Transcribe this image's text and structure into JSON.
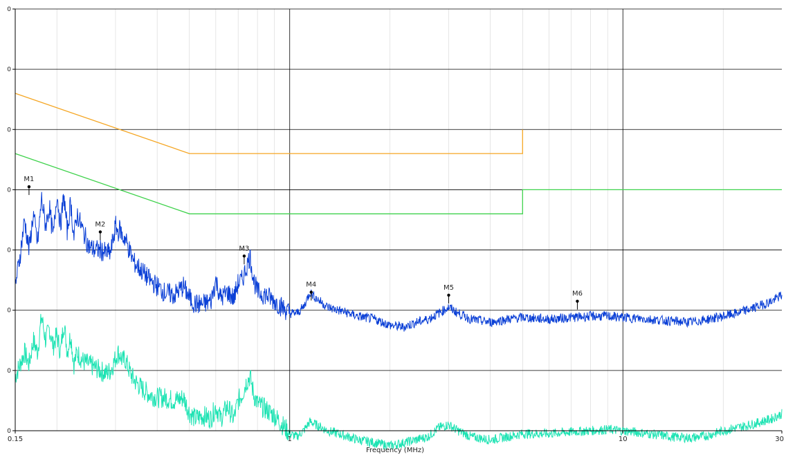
{
  "chart_data": {
    "type": "line",
    "title": "",
    "xlabel": "Frequency (MHz)",
    "ylabel": "",
    "x_scale": "log",
    "xlim": [
      0.15,
      30
    ],
    "x_ticks": [
      {
        "value": 0.15,
        "label": "0.15"
      },
      {
        "value": 1,
        "label": "1"
      },
      {
        "value": 10,
        "label": "10"
      },
      {
        "value": 30,
        "label": "30"
      }
    ],
    "ylim": [
      0,
      7
    ],
    "y_ticks": [
      {
        "value": 0,
        "label": "0"
      },
      {
        "value": 1,
        "label": "0"
      },
      {
        "value": 2,
        "label": "0"
      },
      {
        "value": 3,
        "label": "0"
      },
      {
        "value": 4,
        "label": "0"
      },
      {
        "value": 5,
        "label": "0"
      },
      {
        "value": 6,
        "label": "0"
      },
      {
        "value": 7,
        "label": "0"
      }
    ],
    "grid": true,
    "colors": {
      "peak_trace": "#0a3fd6",
      "average_trace": "#1de3b3",
      "qp_limit": "#f5a623",
      "avg_limit": "#3fd24c",
      "grid": "#000000",
      "minor_grid": "#cccccc"
    },
    "limit_lines": [
      {
        "key": "qp",
        "points": [
          [
            0.15,
            5.6
          ],
          [
            0.5,
            4.6
          ],
          [
            5,
            4.6
          ],
          [
            5,
            5.0
          ]
        ]
      },
      {
        "key": "avg",
        "points": [
          [
            0.15,
            4.6
          ],
          [
            0.5,
            3.6
          ],
          [
            5,
            3.6
          ],
          [
            5,
            4.0
          ],
          [
            30,
            4.0
          ]
        ]
      }
    ],
    "peak_trace": [
      [
        0.15,
        2.4
      ],
      [
        0.155,
        2.9
      ],
      [
        0.16,
        3.5
      ],
      [
        0.165,
        3.0
      ],
      [
        0.17,
        3.6
      ],
      [
        0.175,
        3.1
      ],
      [
        0.18,
        3.85
      ],
      [
        0.185,
        3.4
      ],
      [
        0.19,
        3.7
      ],
      [
        0.195,
        3.2
      ],
      [
        0.2,
        3.95
      ],
      [
        0.205,
        3.4
      ],
      [
        0.21,
        3.9
      ],
      [
        0.215,
        3.3
      ],
      [
        0.22,
        3.8
      ],
      [
        0.225,
        3.2
      ],
      [
        0.23,
        3.6
      ],
      [
        0.24,
        3.3
      ],
      [
        0.25,
        3.05
      ],
      [
        0.26,
        3.0
      ],
      [
        0.27,
        3.0
      ],
      [
        0.28,
        2.95
      ],
      [
        0.29,
        2.95
      ],
      [
        0.3,
        3.4
      ],
      [
        0.305,
        3.3
      ],
      [
        0.31,
        3.35
      ],
      [
        0.315,
        3.2
      ],
      [
        0.32,
        3.2
      ],
      [
        0.33,
        3.0
      ],
      [
        0.34,
        2.8
      ],
      [
        0.36,
        2.65
      ],
      [
        0.38,
        2.5
      ],
      [
        0.4,
        2.4
      ],
      [
        0.42,
        2.3
      ],
      [
        0.45,
        2.25
      ],
      [
        0.48,
        2.4
      ],
      [
        0.5,
        2.2
      ],
      [
        0.52,
        2.1
      ],
      [
        0.55,
        2.1
      ],
      [
        0.58,
        2.15
      ],
      [
        0.6,
        2.5
      ],
      [
        0.62,
        2.2
      ],
      [
        0.65,
        2.3
      ],
      [
        0.68,
        2.2
      ],
      [
        0.7,
        2.45
      ],
      [
        0.72,
        2.5
      ],
      [
        0.74,
        2.7
      ],
      [
        0.76,
        2.9
      ],
      [
        0.78,
        2.5
      ],
      [
        0.8,
        2.3
      ],
      [
        0.85,
        2.25
      ],
      [
        0.9,
        2.15
      ],
      [
        0.95,
        2.05
      ],
      [
        1.0,
        1.95
      ],
      [
        1.05,
        1.95
      ],
      [
        1.1,
        2.05
      ],
      [
        1.15,
        2.3
      ],
      [
        1.2,
        2.2
      ],
      [
        1.3,
        2.05
      ],
      [
        1.4,
        2.0
      ],
      [
        1.5,
        1.95
      ],
      [
        1.6,
        1.9
      ],
      [
        1.8,
        1.85
      ],
      [
        2.0,
        1.75
      ],
      [
        2.2,
        1.72
      ],
      [
        2.4,
        1.8
      ],
      [
        2.6,
        1.85
      ],
      [
        2.8,
        1.95
      ],
      [
        3.0,
        2.05
      ],
      [
        3.2,
        1.95
      ],
      [
        3.5,
        1.85
      ],
      [
        4.0,
        1.8
      ],
      [
        4.5,
        1.85
      ],
      [
        5.0,
        1.88
      ],
      [
        6.0,
        1.85
      ],
      [
        7.0,
        1.88
      ],
      [
        8.0,
        1.9
      ],
      [
        9.0,
        1.9
      ],
      [
        10.0,
        1.88
      ],
      [
        12.0,
        1.85
      ],
      [
        14.0,
        1.82
      ],
      [
        16.0,
        1.8
      ],
      [
        18.0,
        1.85
      ],
      [
        20.0,
        1.9
      ],
      [
        22.0,
        1.95
      ],
      [
        25.0,
        2.05
      ],
      [
        28.0,
        2.15
      ],
      [
        30.0,
        2.25
      ]
    ],
    "average_trace": [
      [
        0.15,
        0.9
      ],
      [
        0.155,
        1.1
      ],
      [
        0.16,
        1.3
      ],
      [
        0.165,
        1.1
      ],
      [
        0.17,
        1.5
      ],
      [
        0.175,
        1.3
      ],
      [
        0.18,
        1.9
      ],
      [
        0.185,
        1.5
      ],
      [
        0.19,
        1.7
      ],
      [
        0.195,
        1.4
      ],
      [
        0.2,
        1.6
      ],
      [
        0.205,
        1.3
      ],
      [
        0.21,
        1.8
      ],
      [
        0.215,
        1.3
      ],
      [
        0.22,
        1.6
      ],
      [
        0.225,
        1.1
      ],
      [
        0.23,
        1.3
      ],
      [
        0.24,
        1.15
      ],
      [
        0.25,
        1.1
      ],
      [
        0.26,
        1.05
      ],
      [
        0.27,
        1.0
      ],
      [
        0.28,
        0.95
      ],
      [
        0.29,
        1.0
      ],
      [
        0.3,
        1.2
      ],
      [
        0.305,
        1.3
      ],
      [
        0.31,
        1.25
      ],
      [
        0.315,
        1.15
      ],
      [
        0.32,
        1.2
      ],
      [
        0.33,
        1.0
      ],
      [
        0.34,
        0.85
      ],
      [
        0.36,
        0.7
      ],
      [
        0.38,
        0.6
      ],
      [
        0.4,
        0.55
      ],
      [
        0.42,
        0.55
      ],
      [
        0.45,
        0.5
      ],
      [
        0.48,
        0.55
      ],
      [
        0.5,
        0.3
      ],
      [
        0.52,
        0.2
      ],
      [
        0.55,
        0.25
      ],
      [
        0.58,
        0.2
      ],
      [
        0.6,
        0.4
      ],
      [
        0.62,
        0.2
      ],
      [
        0.65,
        0.4
      ],
      [
        0.68,
        0.2
      ],
      [
        0.7,
        0.5
      ],
      [
        0.72,
        0.6
      ],
      [
        0.74,
        0.8
      ],
      [
        0.76,
        0.9
      ],
      [
        0.78,
        0.6
      ],
      [
        0.8,
        0.45
      ],
      [
        0.85,
        0.35
      ],
      [
        0.9,
        0.25
      ],
      [
        0.95,
        0.1
      ],
      [
        1.0,
        -0.05
      ],
      [
        1.05,
        -0.1
      ],
      [
        1.1,
        0.0
      ],
      [
        1.15,
        0.15
      ],
      [
        1.2,
        0.1
      ],
      [
        1.3,
        0.0
      ],
      [
        1.4,
        -0.05
      ],
      [
        1.5,
        -0.1
      ],
      [
        1.6,
        -0.15
      ],
      [
        1.8,
        -0.2
      ],
      [
        2.0,
        -0.25
      ],
      [
        2.2,
        -0.2
      ],
      [
        2.4,
        -0.15
      ],
      [
        2.6,
        -0.1
      ],
      [
        2.8,
        0.05
      ],
      [
        3.0,
        0.1
      ],
      [
        3.2,
        0.0
      ],
      [
        3.5,
        -0.1
      ],
      [
        4.0,
        -0.15
      ],
      [
        4.5,
        -0.1
      ],
      [
        5.0,
        -0.05
      ],
      [
        6.0,
        -0.05
      ],
      [
        7.0,
        -0.02
      ],
      [
        8.0,
        0.0
      ],
      [
        9.0,
        0.02
      ],
      [
        10.0,
        0.0
      ],
      [
        12.0,
        -0.05
      ],
      [
        14.0,
        -0.1
      ],
      [
        16.0,
        -0.12
      ],
      [
        18.0,
        -0.08
      ],
      [
        20.0,
        0.0
      ],
      [
        22.0,
        0.05
      ],
      [
        25.0,
        0.12
      ],
      [
        28.0,
        0.2
      ],
      [
        30.0,
        0.28
      ]
    ],
    "markers": [
      {
        "label": "M1",
        "x": 0.165,
        "y": 4.05
      },
      {
        "label": "M2",
        "x": 0.27,
        "y": 3.3
      },
      {
        "label": "M3",
        "x": 0.73,
        "y": 2.9
      },
      {
        "label": "M4",
        "x": 1.16,
        "y": 2.3
      },
      {
        "label": "M5",
        "x": 3.0,
        "y": 2.25
      },
      {
        "label": "M6",
        "x": 7.3,
        "y": 2.15
      }
    ]
  }
}
